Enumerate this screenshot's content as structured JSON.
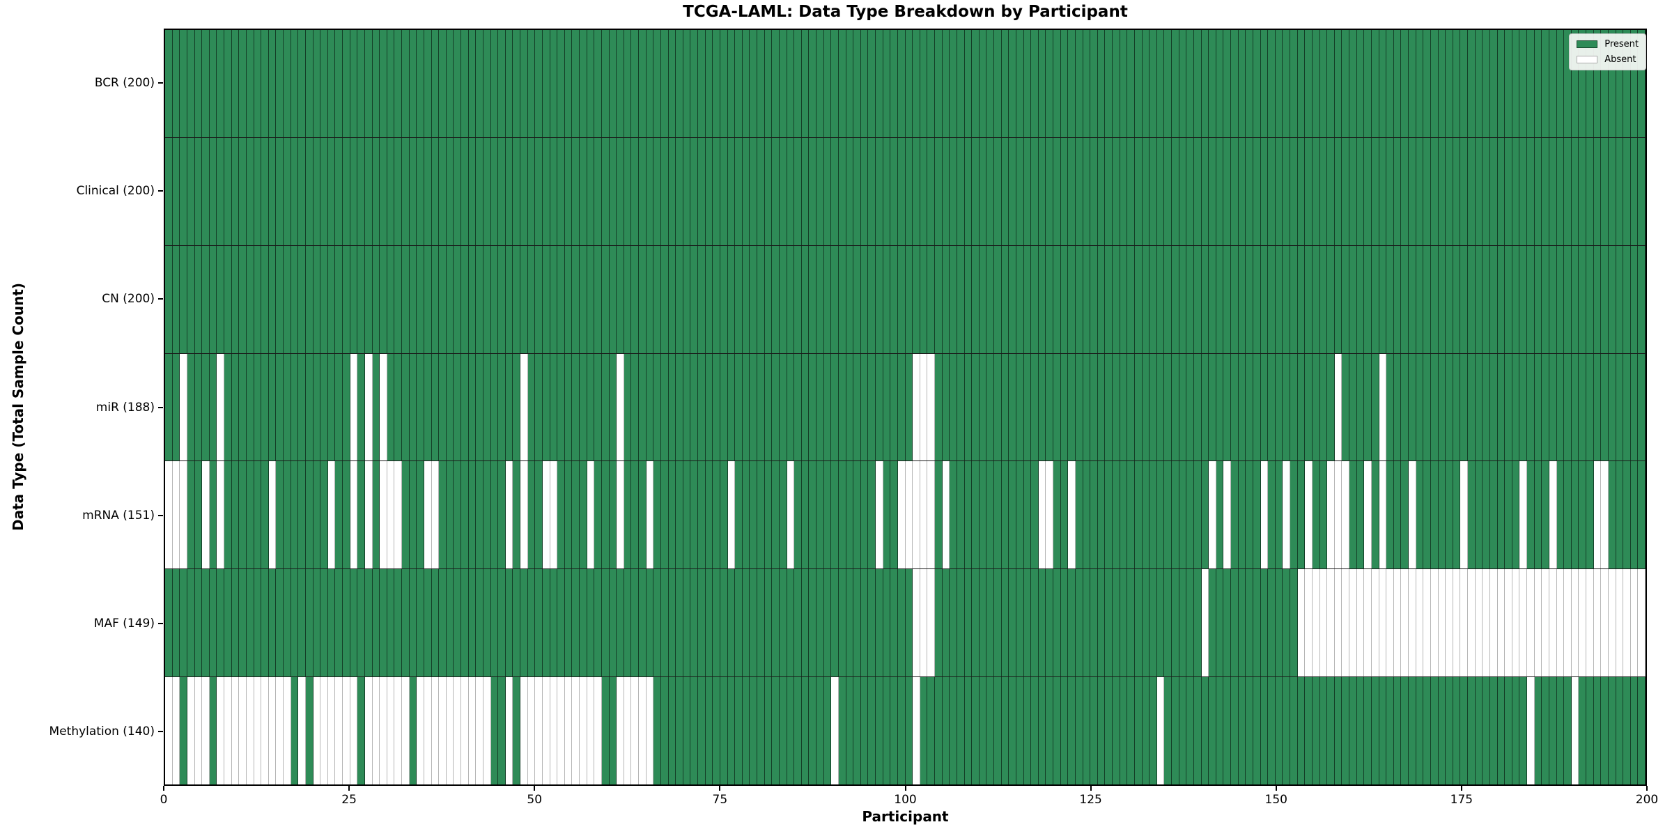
{
  "chart_data": {
    "type": "heatmap",
    "title": "TCGA-LAML: Data Type Breakdown by Participant",
    "xlabel": "Participant",
    "ylabel": "Data Type (Total Sample Count)",
    "n_participants": 200,
    "x_ticks": [
      0,
      25,
      50,
      75,
      100,
      125,
      150,
      175,
      200
    ],
    "legend": {
      "present": "Present",
      "absent": "Absent",
      "position": "upper right"
    },
    "colors": {
      "present": "#2e8b57",
      "absent": "#ffffff"
    },
    "grid": "cell borders on",
    "rows": [
      {
        "label": "BCR",
        "count": 200,
        "absent": []
      },
      {
        "label": "Clinical",
        "count": 200,
        "absent": []
      },
      {
        "label": "CN",
        "count": 200,
        "absent": []
      },
      {
        "label": "miR",
        "count": 188,
        "absent": [
          2,
          7,
          25,
          27,
          29,
          48,
          61,
          101,
          102,
          103,
          158,
          164
        ]
      },
      {
        "label": "mRNA",
        "count": 151,
        "absent": [
          0,
          1,
          2,
          5,
          7,
          14,
          22,
          25,
          27,
          29,
          30,
          31,
          35,
          36,
          46,
          48,
          51,
          52,
          57,
          61,
          65,
          76,
          84,
          96,
          99,
          100,
          101,
          102,
          103,
          105,
          118,
          119,
          122,
          141,
          143,
          148,
          151,
          154,
          157,
          158,
          159,
          162,
          164,
          168,
          175,
          183,
          187,
          193,
          194
        ]
      },
      {
        "label": "MAF",
        "count": 149,
        "absent": [
          101,
          102,
          103,
          140,
          153,
          154,
          155,
          156,
          157,
          158,
          159,
          160,
          161,
          162,
          163,
          164,
          165,
          166,
          167,
          168,
          169,
          170,
          171,
          172,
          173,
          174,
          175,
          176,
          177,
          178,
          179,
          180,
          181,
          182,
          183,
          184,
          185,
          186,
          187,
          188,
          189,
          190,
          191,
          192,
          193,
          194,
          195,
          196,
          197,
          198,
          199
        ]
      },
      {
        "label": "Methylation",
        "count": 140,
        "absent": [
          0,
          1,
          3,
          4,
          5,
          7,
          8,
          9,
          10,
          11,
          12,
          13,
          14,
          15,
          16,
          18,
          20,
          21,
          22,
          23,
          24,
          25,
          27,
          28,
          29,
          30,
          31,
          32,
          34,
          35,
          36,
          37,
          38,
          39,
          40,
          41,
          42,
          43,
          46,
          48,
          49,
          50,
          51,
          52,
          53,
          54,
          55,
          56,
          57,
          58,
          61,
          62,
          63,
          64,
          65,
          90,
          101,
          134,
          184,
          190
        ]
      }
    ]
  }
}
